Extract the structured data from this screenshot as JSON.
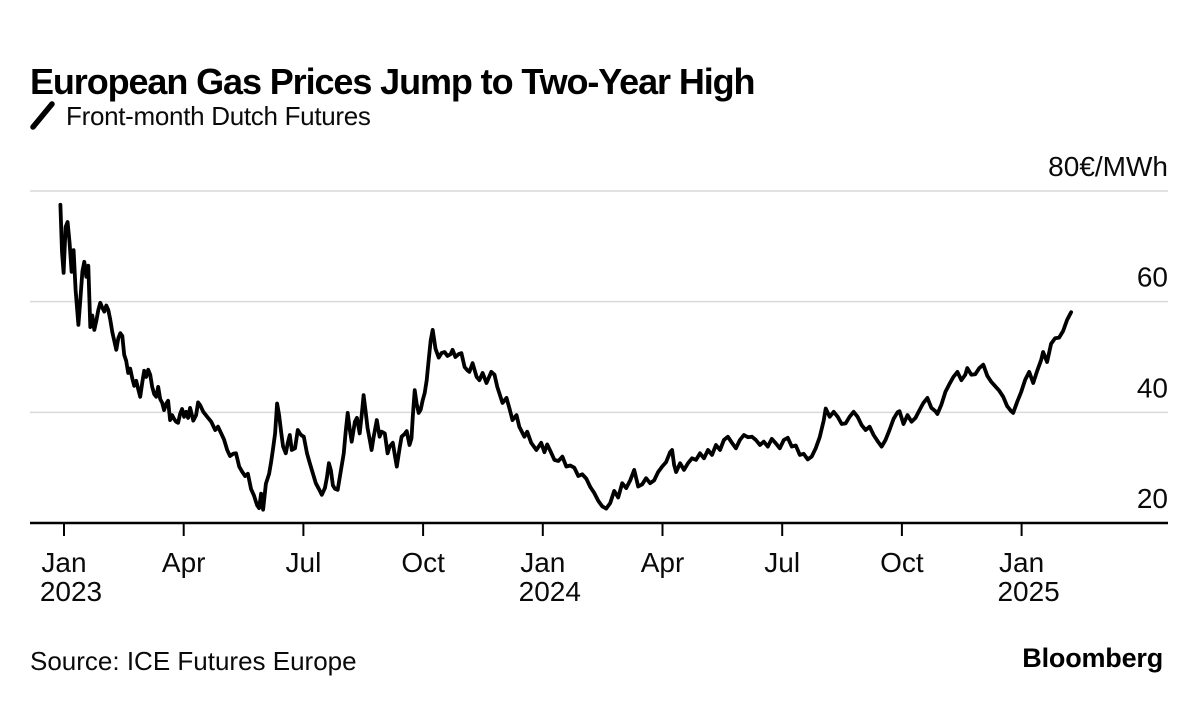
{
  "header": {
    "title": "European Gas Prices Jump to Two-Year High",
    "legend_label": "Front-month Dutch Futures"
  },
  "footer": {
    "source": "Source: ICE Futures Europe",
    "brand": "Bloomberg"
  },
  "colors": {
    "line": "#000000",
    "grid": "#d9d9d9",
    "axis": "#000000",
    "text": "#0a0a0a"
  },
  "chart_data": {
    "type": "line",
    "title": "European Gas Prices Jump to Two-Year High",
    "series_name": "Front-month Dutch Futures",
    "unit": "EUR/MWh",
    "legend_position": "top-left",
    "grid": "horizontal-only",
    "y_axis": {
      "range": [
        20,
        80
      ],
      "gridline_values": [
        80,
        60,
        40
      ],
      "baseline_value": 20,
      "labels": [
        {
          "value": 80,
          "text": "80€/MWh"
        },
        {
          "value": 60,
          "text": "60"
        },
        {
          "value": 40,
          "text": "40"
        },
        {
          "value": 20,
          "text": "20"
        }
      ]
    },
    "x_axis": {
      "unit": "months since Jan 2023",
      "range_months": [
        -0.2,
        25.7
      ],
      "ticks": [
        {
          "m": 0,
          "label": "Jan",
          "year": "2023"
        },
        {
          "m": 3,
          "label": "Apr",
          "year": ""
        },
        {
          "m": 6,
          "label": "Jul",
          "year": ""
        },
        {
          "m": 9,
          "label": "Oct",
          "year": ""
        },
        {
          "m": 12,
          "label": "Jan",
          "year": "2024"
        },
        {
          "m": 15,
          "label": "Apr",
          "year": ""
        },
        {
          "m": 18,
          "label": "Jul",
          "year": ""
        },
        {
          "m": 21,
          "label": "Oct",
          "year": ""
        },
        {
          "m": 24,
          "label": "Jan",
          "year": "2025"
        }
      ]
    },
    "points": [
      [
        -0.09,
        77.5
      ],
      [
        -0.05,
        69
      ],
      [
        -0.01,
        65.2
      ],
      [
        0.04,
        73.5
      ],
      [
        0.09,
        74.4
      ],
      [
        0.14,
        70.6
      ],
      [
        0.19,
        65.4
      ],
      [
        0.24,
        69.3
      ],
      [
        0.29,
        62.1
      ],
      [
        0.36,
        55.8
      ],
      [
        0.41,
        60.5
      ],
      [
        0.46,
        65.5
      ],
      [
        0.51,
        67.2
      ],
      [
        0.56,
        64.5
      ],
      [
        0.61,
        66.5
      ],
      [
        0.66,
        55.4
      ],
      [
        0.71,
        57.5
      ],
      [
        0.76,
        54.9
      ],
      [
        0.81,
        56.5
      ],
      [
        0.86,
        58.5
      ],
      [
        0.91,
        59.8
      ],
      [
        0.96,
        58.9
      ],
      [
        1.01,
        58.2
      ],
      [
        1.06,
        59.3
      ],
      [
        1.11,
        58.5
      ],
      [
        1.16,
        56.7
      ],
      [
        1.21,
        54.5
      ],
      [
        1.26,
        52.9
      ],
      [
        1.31,
        51.3
      ],
      [
        1.36,
        53.4
      ],
      [
        1.41,
        54.3
      ],
      [
        1.46,
        53.8
      ],
      [
        1.51,
        50.4
      ],
      [
        1.56,
        49.3
      ],
      [
        1.61,
        47.1
      ],
      [
        1.66,
        47.9
      ],
      [
        1.71,
        46.2
      ],
      [
        1.76,
        44.8
      ],
      [
        1.81,
        45.7
      ],
      [
        1.86,
        44.2
      ],
      [
        1.91,
        42.8
      ],
      [
        1.96,
        45.3
      ],
      [
        2.01,
        47.5
      ],
      [
        2.06,
        46.4
      ],
      [
        2.11,
        47.7
      ],
      [
        2.16,
        46.8
      ],
      [
        2.21,
        44.6
      ],
      [
        2.26,
        43.3
      ],
      [
        2.31,
        42.8
      ],
      [
        2.36,
        44.6
      ],
      [
        2.41,
        42.4
      ],
      [
        2.46,
        41.7
      ],
      [
        2.51,
        40.4
      ],
      [
        2.56,
        41.5
      ],
      [
        2.61,
        42.1
      ],
      [
        2.66,
        38.6
      ],
      [
        2.71,
        39.5
      ],
      [
        2.76,
        38.8
      ],
      [
        2.81,
        38.3
      ],
      [
        2.86,
        38.1
      ],
      [
        2.91,
        39.7
      ],
      [
        2.96,
        40.6
      ],
      [
        3.01,
        39.2
      ],
      [
        3.06,
        40.1
      ],
      [
        3.11,
        39
      ],
      [
        3.16,
        40.8
      ],
      [
        3.24,
        38.5
      ],
      [
        3.31,
        39.5
      ],
      [
        3.36,
        41.8
      ],
      [
        3.41,
        41.3
      ],
      [
        3.49,
        40.1
      ],
      [
        3.59,
        39.2
      ],
      [
        3.69,
        38.3
      ],
      [
        3.79,
        36.8
      ],
      [
        3.86,
        37.4
      ],
      [
        3.94,
        36.2
      ],
      [
        4.01,
        35.1
      ],
      [
        4.09,
        33.2
      ],
      [
        4.16,
        32.1
      ],
      [
        4.24,
        32.5
      ],
      [
        4.31,
        32.6
      ],
      [
        4.39,
        30.2
      ],
      [
        4.46,
        29.3
      ],
      [
        4.54,
        28.5
      ],
      [
        4.61,
        28.9
      ],
      [
        4.69,
        26.1
      ],
      [
        4.76,
        25
      ],
      [
        4.84,
        23.2
      ],
      [
        4.89,
        22.7
      ],
      [
        4.94,
        25.3
      ],
      [
        4.99,
        22.4
      ],
      [
        5.06,
        27.1
      ],
      [
        5.14,
        28.9
      ],
      [
        5.19,
        31
      ],
      [
        5.24,
        33.5
      ],
      [
        5.29,
        36.2
      ],
      [
        5.34,
        41.6
      ],
      [
        5.39,
        39.5
      ],
      [
        5.44,
        36.5
      ],
      [
        5.49,
        33.8
      ],
      [
        5.56,
        32.6
      ],
      [
        5.61,
        34.5
      ],
      [
        5.66,
        35.9
      ],
      [
        5.71,
        33.2
      ],
      [
        5.79,
        33.5
      ],
      [
        5.86,
        36.8
      ],
      [
        5.91,
        36.2
      ],
      [
        5.96,
        35.8
      ],
      [
        6.01,
        35.6
      ],
      [
        6.09,
        32.6
      ],
      [
        6.16,
        30.8
      ],
      [
        6.24,
        28.9
      ],
      [
        6.31,
        27.2
      ],
      [
        6.39,
        26.1
      ],
      [
        6.46,
        25.1
      ],
      [
        6.54,
        26.3
      ],
      [
        6.59,
        28.2
      ],
      [
        6.64,
        30.8
      ],
      [
        6.69,
        29.5
      ],
      [
        6.74,
        26.8
      ],
      [
        6.79,
        26.2
      ],
      [
        6.86,
        26
      ],
      [
        6.94,
        29.5
      ],
      [
        7.01,
        32.5
      ],
      [
        7.06,
        36.5
      ],
      [
        7.11,
        39.9
      ],
      [
        7.16,
        37
      ],
      [
        7.21,
        34.7
      ],
      [
        7.29,
        38.3
      ],
      [
        7.34,
        39
      ],
      [
        7.41,
        36.2
      ],
      [
        7.46,
        39.5
      ],
      [
        7.51,
        43.1
      ],
      [
        7.56,
        40.2
      ],
      [
        7.61,
        37.1
      ],
      [
        7.66,
        35.2
      ],
      [
        7.71,
        33.2
      ],
      [
        7.76,
        35.5
      ],
      [
        7.84,
        38.6
      ],
      [
        7.91,
        35.6
      ],
      [
        7.96,
        36.5
      ],
      [
        8.04,
        36.2
      ],
      [
        8.11,
        32.6
      ],
      [
        8.16,
        33.8
      ],
      [
        8.24,
        34.5
      ],
      [
        8.29,
        32.3
      ],
      [
        8.34,
        30.2
      ],
      [
        8.41,
        33.5
      ],
      [
        8.46,
        35.6
      ],
      [
        8.54,
        36.1
      ],
      [
        8.59,
        36.6
      ],
      [
        8.66,
        34.1
      ],
      [
        8.71,
        35.3
      ],
      [
        8.74,
        39
      ],
      [
        8.79,
        44
      ],
      [
        8.84,
        41.5
      ],
      [
        8.89,
        39.9
      ],
      [
        8.94,
        40.5
      ],
      [
        8.99,
        42.2
      ],
      [
        9.04,
        43.5
      ],
      [
        9.09,
        45.8
      ],
      [
        9.14,
        49.5
      ],
      [
        9.19,
        53
      ],
      [
        9.24,
        54.9
      ],
      [
        9.31,
        51.5
      ],
      [
        9.39,
        49.9
      ],
      [
        9.46,
        50.7
      ],
      [
        9.54,
        50.9
      ],
      [
        9.61,
        50.2
      ],
      [
        9.69,
        50.5
      ],
      [
        9.74,
        51.3
      ],
      [
        9.81,
        50
      ],
      [
        9.89,
        50.5
      ],
      [
        9.96,
        50.7
      ],
      [
        10.04,
        48.2
      ],
      [
        10.11,
        47.6
      ],
      [
        10.16,
        47.3
      ],
      [
        10.24,
        48.9
      ],
      [
        10.34,
        46.4
      ],
      [
        10.41,
        45.8
      ],
      [
        10.49,
        47.1
      ],
      [
        10.59,
        45.3
      ],
      [
        10.71,
        47.3
      ],
      [
        10.79,
        46.8
      ],
      [
        10.86,
        44.6
      ],
      [
        10.99,
        41.7
      ],
      [
        11.09,
        42.6
      ],
      [
        11.16,
        40.8
      ],
      [
        11.24,
        38.6
      ],
      [
        11.34,
        39.5
      ],
      [
        11.41,
        37.4
      ],
      [
        11.54,
        35.6
      ],
      [
        11.61,
        36.5
      ],
      [
        11.71,
        34.5
      ],
      [
        11.84,
        33.2
      ],
      [
        11.96,
        34.5
      ],
      [
        12.04,
        32.8
      ],
      [
        12.11,
        34.2
      ],
      [
        12.19,
        33
      ],
      [
        12.29,
        31.4
      ],
      [
        12.39,
        31.2
      ],
      [
        12.49,
        32
      ],
      [
        12.59,
        30.2
      ],
      [
        12.69,
        30.4
      ],
      [
        12.79,
        30
      ],
      [
        12.89,
        28.5
      ],
      [
        12.99,
        28.8
      ],
      [
        13.09,
        28
      ],
      [
        13.19,
        26.5
      ],
      [
        13.29,
        25.4
      ],
      [
        13.39,
        24
      ],
      [
        13.49,
        23
      ],
      [
        13.59,
        22.6
      ],
      [
        13.69,
        23.6
      ],
      [
        13.79,
        25.8
      ],
      [
        13.89,
        24.6
      ],
      [
        13.99,
        27.2
      ],
      [
        14.09,
        26.3
      ],
      [
        14.19,
        27.7
      ],
      [
        14.29,
        29.6
      ],
      [
        14.39,
        26.6
      ],
      [
        14.49,
        27
      ],
      [
        14.59,
        28.1
      ],
      [
        14.69,
        27.2
      ],
      [
        14.79,
        27.7
      ],
      [
        14.89,
        29.2
      ],
      [
        14.99,
        30.2
      ],
      [
        15.09,
        31
      ],
      [
        15.19,
        32.8
      ],
      [
        15.24,
        33.2
      ],
      [
        15.29,
        30.5
      ],
      [
        15.34,
        29.2
      ],
      [
        15.44,
        30.8
      ],
      [
        15.54,
        29.6
      ],
      [
        15.64,
        30.8
      ],
      [
        15.74,
        31.7
      ],
      [
        15.84,
        31.4
      ],
      [
        15.94,
        32.6
      ],
      [
        16.04,
        31.7
      ],
      [
        16.14,
        33.2
      ],
      [
        16.24,
        32.3
      ],
      [
        16.34,
        34.1
      ],
      [
        16.44,
        33.2
      ],
      [
        16.54,
        35
      ],
      [
        16.64,
        35.6
      ],
      [
        16.74,
        34.5
      ],
      [
        16.84,
        33.5
      ],
      [
        16.94,
        35
      ],
      [
        17.04,
        35.9
      ],
      [
        17.14,
        35.5
      ],
      [
        17.24,
        35.6
      ],
      [
        17.34,
        35
      ],
      [
        17.44,
        34.1
      ],
      [
        17.54,
        34.7
      ],
      [
        17.64,
        33.8
      ],
      [
        17.74,
        35.2
      ],
      [
        17.84,
        34.4
      ],
      [
        17.94,
        33.5
      ],
      [
        18.04,
        35
      ],
      [
        18.14,
        35.4
      ],
      [
        18.24,
        33.8
      ],
      [
        18.34,
        34
      ],
      [
        18.44,
        32.3
      ],
      [
        18.54,
        32.5
      ],
      [
        18.64,
        31.5
      ],
      [
        18.74,
        32
      ],
      [
        18.84,
        33.5
      ],
      [
        18.94,
        35.5
      ],
      [
        19.04,
        38.5
      ],
      [
        19.09,
        40.7
      ],
      [
        19.19,
        39.2
      ],
      [
        19.29,
        40.1
      ],
      [
        19.39,
        39.2
      ],
      [
        19.49,
        37.9
      ],
      [
        19.59,
        38
      ],
      [
        19.69,
        39.2
      ],
      [
        19.79,
        40.1
      ],
      [
        19.89,
        39.2
      ],
      [
        19.99,
        37.7
      ],
      [
        20.09,
        36.8
      ],
      [
        20.19,
        37.4
      ],
      [
        20.29,
        35.9
      ],
      [
        20.39,
        34.8
      ],
      [
        20.49,
        33.8
      ],
      [
        20.59,
        35
      ],
      [
        20.69,
        36.8
      ],
      [
        20.79,
        38.8
      ],
      [
        20.89,
        40
      ],
      [
        20.94,
        40.2
      ],
      [
        21.04,
        37.9
      ],
      [
        21.14,
        39.5
      ],
      [
        21.24,
        38.3
      ],
      [
        21.34,
        39
      ],
      [
        21.44,
        40.4
      ],
      [
        21.54,
        41.7
      ],
      [
        21.64,
        42.6
      ],
      [
        21.74,
        40.8
      ],
      [
        21.84,
        40.2
      ],
      [
        21.89,
        39.7
      ],
      [
        21.99,
        41.4
      ],
      [
        22.09,
        43.7
      ],
      [
        22.19,
        45.1
      ],
      [
        22.29,
        46.4
      ],
      [
        22.39,
        47.3
      ],
      [
        22.49,
        45.8
      ],
      [
        22.59,
        46.8
      ],
      [
        22.64,
        48
      ],
      [
        22.74,
        46.8
      ],
      [
        22.84,
        46.9
      ],
      [
        22.94,
        48
      ],
      [
        23.04,
        48.6
      ],
      [
        23.14,
        46.6
      ],
      [
        23.24,
        45.5
      ],
      [
        23.34,
        44.7
      ],
      [
        23.44,
        43.9
      ],
      [
        23.54,
        42.8
      ],
      [
        23.64,
        41.1
      ],
      [
        23.74,
        40.2
      ],
      [
        23.79,
        39.9
      ],
      [
        23.89,
        41.9
      ],
      [
        23.99,
        43.7
      ],
      [
        24.09,
        45.9
      ],
      [
        24.19,
        47.3
      ],
      [
        24.29,
        45.3
      ],
      [
        24.39,
        47.5
      ],
      [
        24.49,
        49.5
      ],
      [
        24.54,
        50.9
      ],
      [
        24.64,
        49.1
      ],
      [
        24.74,
        52.4
      ],
      [
        24.84,
        53.4
      ],
      [
        24.94,
        53.5
      ],
      [
        25.04,
        54.7
      ],
      [
        25.14,
        56.7
      ],
      [
        25.24,
        58.1
      ]
    ]
  }
}
